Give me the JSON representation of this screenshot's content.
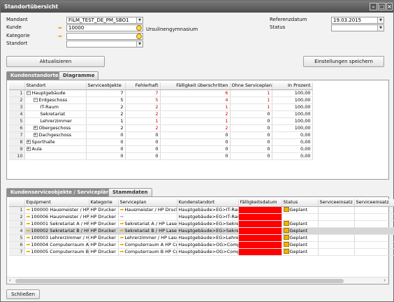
{
  "window": {
    "title": "Standortübersicht"
  },
  "filters": {
    "mandant_label": "Mandant",
    "mandant_value": "FILM_TEST_DE_PM_SBO1",
    "kunde_label": "Kunde",
    "kunde_value": "10000",
    "kunde_name": "Ursulinengymnasium",
    "kategorie_label": "Kategorie",
    "standort_label": "Standort",
    "referenzdatum_label": "Referenzdatum",
    "referenzdatum_value": "19.03.2015",
    "status_label": "Status"
  },
  "buttons": {
    "aktualisieren": "Aktualisieren",
    "einstellungen": "Einstellungen speichern",
    "schliessen": "Schließen"
  },
  "top_tabs": [
    "Kundenstandorte",
    "Diagramme"
  ],
  "standorte": {
    "headers": [
      "Standort",
      "Serviceobjekte",
      "Fehlerhaft",
      "Fälligkeit überschritten",
      "Ohne Serviceplan",
      "In Prozent"
    ],
    "rows": [
      {
        "n": "1",
        "tree": "−",
        "indent": 0,
        "name": "Hauptgebäude",
        "so": "7",
        "fh": "7",
        "fu": "6",
        "os": "1",
        "pct": "100,00"
      },
      {
        "n": "2",
        "tree": "−",
        "indent": 1,
        "name": "Erdgeschoss",
        "so": "5",
        "fh": "5",
        "fu": "4",
        "os": "1",
        "pct": "100,00"
      },
      {
        "n": "3",
        "tree": "",
        "indent": 2,
        "name": "IT-Raum",
        "so": "2",
        "fh": "2",
        "fu": "1",
        "os": "1",
        "pct": "100,00"
      },
      {
        "n": "4",
        "tree": "",
        "indent": 2,
        "name": "Sekretariat",
        "so": "2",
        "fh": "2",
        "fu": "2",
        "os": "0",
        "pct": "100,00"
      },
      {
        "n": "5",
        "tree": "",
        "indent": 2,
        "name": "Lehrerzimmer",
        "so": "1",
        "fh": "1",
        "fu": "1",
        "os": "0",
        "pct": "100,00"
      },
      {
        "n": "6",
        "tree": "+",
        "indent": 1,
        "name": "Obergeschoss",
        "so": "2",
        "fh": "2",
        "fu": "2",
        "os": "0",
        "pct": "100,00"
      },
      {
        "n": "7",
        "tree": "+",
        "indent": 1,
        "name": "Dachgeschoss",
        "so": "0",
        "fh": "0",
        "fu": "0",
        "os": "0",
        "pct": "0,00"
      },
      {
        "n": "8",
        "tree": "+",
        "indent": 0,
        "name": "Sporthalle",
        "so": "0",
        "fh": "0",
        "fu": "0",
        "os": "0",
        "pct": "0,00"
      },
      {
        "n": "9",
        "tree": "+",
        "indent": 0,
        "name": "Aula",
        "so": "0",
        "fh": "0",
        "fu": "0",
        "os": "0",
        "pct": "0,00"
      },
      {
        "n": "10",
        "tree": "",
        "indent": 0,
        "name": "",
        "so": "0",
        "fh": "0",
        "fu": "0",
        "os": "0",
        "pct": "0,00"
      }
    ]
  },
  "bottom_tabs": [
    "Kundenserviceobjekte / Servicepläne",
    "Stammdaten"
  ],
  "serviceobjekte": {
    "headers": [
      "Equipment",
      "Kategorie",
      "Serviceplan",
      "Kundenstandort",
      "Fälligkeitsdatum",
      "Status",
      "Serviceeinsatz",
      "Serviceeinsatz"
    ],
    "rows": [
      {
        "n": "1",
        "equipment": "100000 Hausmeister / HP",
        "kategorie": "HP Drucker",
        "serviceplan": "Hausmeister / HP Druck",
        "standort": "Hauptgebäude>EG>IT-Raum",
        "status": "Geplant"
      },
      {
        "n": "2",
        "equipment": "100006 Hausmeister / HP",
        "kategorie": "HP Drucker",
        "serviceplan": "",
        "standort": "Hauptgebäude>EG>IT-Raum",
        "status": ""
      },
      {
        "n": "3",
        "equipment": "100001 Sekretariat A / HP",
        "kategorie": "HP Drucker",
        "serviceplan": "Sekretariat A / HP Lase",
        "standort": "Hauptgebäude>EG>Sekreta",
        "status": "Geplant"
      },
      {
        "n": "4",
        "equipment": "100002 Sekretariat B / HP",
        "kategorie": "HP Drucker",
        "serviceplan": "Sekretariat B / HP Lase",
        "standort": "Hauptgebäude>EG>Sekreta",
        "status": "Geplant"
      },
      {
        "n": "5",
        "equipment": "100003 Lehrerzimmer / HP",
        "kategorie": "HP Drucker",
        "serviceplan": "Lehrerzimmer / HP Lase",
        "standort": "Hauptgebäude>EG>Lehrerz",
        "status": "Geplant"
      },
      {
        "n": "6",
        "equipment": "100004 Computerraum A H",
        "kategorie": "HP Drucker",
        "serviceplan": "Computerraum A HP Co",
        "standort": "Hauptgebäude>OG>Comput",
        "status": "Geplant"
      },
      {
        "n": "7",
        "equipment": "100005 Computerraum B H",
        "kategorie": "HP Drucker",
        "serviceplan": "Computerraum B HP Co",
        "standort": "Hauptgebäude>OG>Comput",
        "status": "Geplant"
      }
    ]
  },
  "colors": {
    "overdue": "#ff0000",
    "error_text": "#d00000",
    "accent_arrow": "#e5a800"
  }
}
